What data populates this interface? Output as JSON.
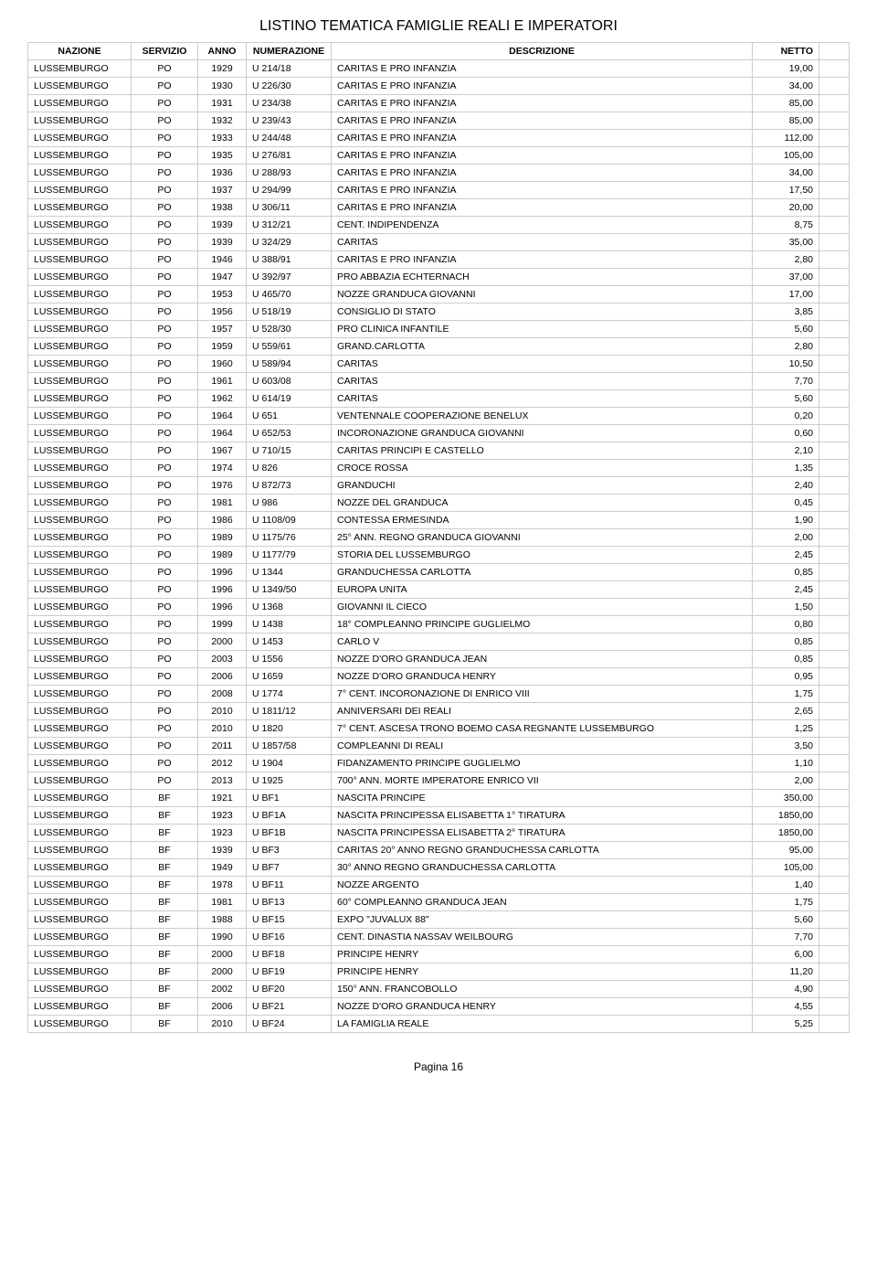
{
  "title": "LISTINO TEMATICA FAMIGLIE REALI E IMPERATORI",
  "columns": [
    "NAZIONE",
    "SERVIZIO",
    "ANNO",
    "NUMERAZIONE",
    "DESCRIZIONE",
    "NETTO"
  ],
  "rows": [
    [
      "LUSSEMBURGO",
      "PO",
      "1929",
      "U 214/18",
      "CARITAS E PRO INFANZIA",
      "19,00"
    ],
    [
      "LUSSEMBURGO",
      "PO",
      "1930",
      "U 226/30",
      "CARITAS E PRO INFANZIA",
      "34,00"
    ],
    [
      "LUSSEMBURGO",
      "PO",
      "1931",
      "U 234/38",
      "CARITAS E PRO INFANZIA",
      "85,00"
    ],
    [
      "LUSSEMBURGO",
      "PO",
      "1932",
      "U 239/43",
      "CARITAS E PRO INFANZIA",
      "85,00"
    ],
    [
      "LUSSEMBURGO",
      "PO",
      "1933",
      "U 244/48",
      "CARITAS E PRO INFANZIA",
      "112,00"
    ],
    [
      "LUSSEMBURGO",
      "PO",
      "1935",
      "U 276/81",
      "CARITAS E PRO INFANZIA",
      "105,00"
    ],
    [
      "LUSSEMBURGO",
      "PO",
      "1936",
      "U 288/93",
      "CARITAS E PRO INFANZIA",
      "34,00"
    ],
    [
      "LUSSEMBURGO",
      "PO",
      "1937",
      "U 294/99",
      "CARITAS E PRO INFANZIA",
      "17,50"
    ],
    [
      "LUSSEMBURGO",
      "PO",
      "1938",
      "U 306/11",
      "CARITAS E PRO INFANZIA",
      "20,00"
    ],
    [
      "LUSSEMBURGO",
      "PO",
      "1939",
      "U 312/21",
      "CENT. INDIPENDENZA",
      "8,75"
    ],
    [
      "LUSSEMBURGO",
      "PO",
      "1939",
      "U 324/29",
      "CARITAS",
      "35,00"
    ],
    [
      "LUSSEMBURGO",
      "PO",
      "1946",
      "U 388/91",
      "CARITAS E PRO INFANZIA",
      "2,80"
    ],
    [
      "LUSSEMBURGO",
      "PO",
      "1947",
      "U 392/97",
      "PRO ABBAZIA ECHTERNACH",
      "37,00"
    ],
    [
      "LUSSEMBURGO",
      "PO",
      "1953",
      "U 465/70",
      "NOZZE GRANDUCA GIOVANNI",
      "17,00"
    ],
    [
      "LUSSEMBURGO",
      "PO",
      "1956",
      "U 518/19",
      "CONSIGLIO DI STATO",
      "3,85"
    ],
    [
      "LUSSEMBURGO",
      "PO",
      "1957",
      "U 528/30",
      "PRO CLINICA INFANTILE",
      "5,60"
    ],
    [
      "LUSSEMBURGO",
      "PO",
      "1959",
      "U 559/61",
      "GRAND.CARLOTTA",
      "2,80"
    ],
    [
      "LUSSEMBURGO",
      "PO",
      "1960",
      "U 589/94",
      "CARITAS",
      "10,50"
    ],
    [
      "LUSSEMBURGO",
      "PO",
      "1961",
      "U 603/08",
      "CARITAS",
      "7,70"
    ],
    [
      "LUSSEMBURGO",
      "PO",
      "1962",
      "U 614/19",
      "CARITAS",
      "5,60"
    ],
    [
      "LUSSEMBURGO",
      "PO",
      "1964",
      "U 651",
      "VENTENNALE COOPERAZIONE BENELUX",
      "0,20"
    ],
    [
      "LUSSEMBURGO",
      "PO",
      "1964",
      "U 652/53",
      "INCORONAZIONE GRANDUCA GIOVANNI",
      "0,60"
    ],
    [
      "LUSSEMBURGO",
      "PO",
      "1967",
      "U 710/15",
      "CARITAS PRINCIPI E CASTELLO",
      "2,10"
    ],
    [
      "LUSSEMBURGO",
      "PO",
      "1974",
      "U 826",
      "CROCE ROSSA",
      "1,35"
    ],
    [
      "LUSSEMBURGO",
      "PO",
      "1976",
      "U 872/73",
      "GRANDUCHI",
      "2,40"
    ],
    [
      "LUSSEMBURGO",
      "PO",
      "1981",
      "U 986",
      "NOZZE DEL GRANDUCA",
      "0,45"
    ],
    [
      "LUSSEMBURGO",
      "PO",
      "1986",
      "U 1108/09",
      "CONTESSA ERMESINDA",
      "1,90"
    ],
    [
      "LUSSEMBURGO",
      "PO",
      "1989",
      "U 1175/76",
      "25° ANN. REGNO GRANDUCA GIOVANNI",
      "2,00"
    ],
    [
      "LUSSEMBURGO",
      "PO",
      "1989",
      "U 1177/79",
      "STORIA DEL LUSSEMBURGO",
      "2,45"
    ],
    [
      "LUSSEMBURGO",
      "PO",
      "1996",
      "U 1344",
      "GRANDUCHESSA CARLOTTA",
      "0,85"
    ],
    [
      "LUSSEMBURGO",
      "PO",
      "1996",
      "U 1349/50",
      "EUROPA UNITA",
      "2,45"
    ],
    [
      "LUSSEMBURGO",
      "PO",
      "1996",
      "U 1368",
      "GIOVANNI IL CIECO",
      "1,50"
    ],
    [
      "LUSSEMBURGO",
      "PO",
      "1999",
      "U 1438",
      "18° COMPLEANNO PRINCIPE GUGLIELMO",
      "0,80"
    ],
    [
      "LUSSEMBURGO",
      "PO",
      "2000",
      "U 1453",
      "CARLO V",
      "0,85"
    ],
    [
      "LUSSEMBURGO",
      "PO",
      "2003",
      "U 1556",
      "NOZZE D'ORO GRANDUCA JEAN",
      "0,85"
    ],
    [
      "LUSSEMBURGO",
      "PO",
      "2006",
      "U 1659",
      "NOZZE D'ORO GRANDUCA HENRY",
      "0,95"
    ],
    [
      "LUSSEMBURGO",
      "PO",
      "2008",
      "U 1774",
      "7° CENT. INCORONAZIONE DI ENRICO VIII",
      "1,75"
    ],
    [
      "LUSSEMBURGO",
      "PO",
      "2010",
      "U 1811/12",
      "ANNIVERSARI DEI REALI",
      "2,65"
    ],
    [
      "LUSSEMBURGO",
      "PO",
      "2010",
      "U 1820",
      "7° CENT. ASCESA TRONO BOEMO CASA REGNANTE LUSSEMBURGO",
      "1,25"
    ],
    [
      "LUSSEMBURGO",
      "PO",
      "2011",
      "U 1857/58",
      "COMPLEANNI DI REALI",
      "3,50"
    ],
    [
      "LUSSEMBURGO",
      "PO",
      "2012",
      "U 1904",
      "FIDANZAMENTO PRINCIPE GUGLIELMO",
      "1,10"
    ],
    [
      "LUSSEMBURGO",
      "PO",
      "2013",
      "U 1925",
      "700° ANN. MORTE IMPERATORE ENRICO VII",
      "2,00"
    ],
    [
      "LUSSEMBURGO",
      "BF",
      "1921",
      "U BF1",
      "NASCITA PRINCIPE",
      "350,00"
    ],
    [
      "LUSSEMBURGO",
      "BF",
      "1923",
      "U BF1A",
      "NASCITA PRINCIPESSA ELISABETTA 1° TIRATURA",
      "1850,00"
    ],
    [
      "LUSSEMBURGO",
      "BF",
      "1923",
      "U BF1B",
      "NASCITA PRINCIPESSA ELISABETTA 2° TIRATURA",
      "1850,00"
    ],
    [
      "LUSSEMBURGO",
      "BF",
      "1939",
      "U BF3",
      "CARITAS 20° ANNO REGNO GRANDUCHESSA CARLOTTA",
      "95,00"
    ],
    [
      "LUSSEMBURGO",
      "BF",
      "1949",
      "U BF7",
      "30° ANNO REGNO GRANDUCHESSA CARLOTTA",
      "105,00"
    ],
    [
      "LUSSEMBURGO",
      "BF",
      "1978",
      "U BF11",
      "NOZZE ARGENTO",
      "1,40"
    ],
    [
      "LUSSEMBURGO",
      "BF",
      "1981",
      "U BF13",
      "60° COMPLEANNO GRANDUCA JEAN",
      "1,75"
    ],
    [
      "LUSSEMBURGO",
      "BF",
      "1988",
      "U BF15",
      "EXPO \"JUVALUX 88\"",
      "5,60"
    ],
    [
      "LUSSEMBURGO",
      "BF",
      "1990",
      "U BF16",
      "CENT. DINASTIA NASSAV WEILBOURG",
      "7,70"
    ],
    [
      "LUSSEMBURGO",
      "BF",
      "2000",
      "U BF18",
      "PRINCIPE HENRY",
      "6,00"
    ],
    [
      "LUSSEMBURGO",
      "BF",
      "2000",
      "U BF19",
      "PRINCIPE HENRY",
      "11,20"
    ],
    [
      "LUSSEMBURGO",
      "BF",
      "2002",
      "U BF20",
      "150° ANN. FRANCOBOLLO",
      "4,90"
    ],
    [
      "LUSSEMBURGO",
      "BF",
      "2006",
      "U BF21",
      "NOZZE D'ORO GRANDUCA HENRY",
      "4,55"
    ],
    [
      "LUSSEMBURGO",
      "BF",
      "2010",
      "U BF24",
      "LA FAMIGLIA REALE",
      "5,25"
    ]
  ],
  "footer": "Pagina 16"
}
